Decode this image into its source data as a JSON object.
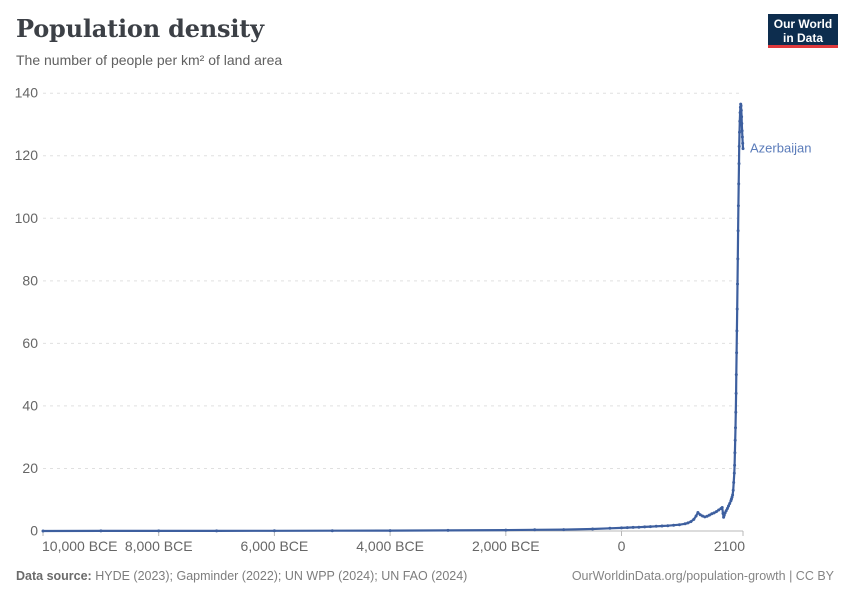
{
  "header": {
    "title": "Population density",
    "subtitle": "The number of people per km² of land area",
    "logo": {
      "line1": "Our World",
      "line2": "in Data",
      "bg_color": "#0d2d4e",
      "accent_color": "#e0393c",
      "text_color": "#ffffff"
    }
  },
  "footer": {
    "source_label": "Data source:",
    "source_text": " HYDE (2023); Gapminder (2022); UN WPP (2024); UN FAO (2024)",
    "credit": "OurWorldinData.org/population-growth | CC BY"
  },
  "chart_data": {
    "type": "line",
    "title": "Population density",
    "subtitle": "The number of people per km² of land area",
    "xlabel": "",
    "ylabel": "",
    "xlim": [
      -10000,
      2100
    ],
    "ylim": [
      0,
      140
    ],
    "grid": "dashed-horizontal",
    "grid_color": "#e0e0e0",
    "axis_color": "#b8b8b8",
    "tick_text_color": "#666666",
    "legend": "inline-end-label",
    "y_ticks": [
      0,
      20,
      40,
      60,
      80,
      100,
      120,
      140
    ],
    "x_ticks": [
      {
        "year": -10000,
        "label": "10,000 BCE"
      },
      {
        "year": -8000,
        "label": "8,000 BCE"
      },
      {
        "year": -6000,
        "label": "6,000 BCE"
      },
      {
        "year": -4000,
        "label": "4,000 BCE"
      },
      {
        "year": -2000,
        "label": "2,000 BCE"
      },
      {
        "year": 0,
        "label": "0"
      },
      {
        "year": 2100,
        "label": "2100"
      }
    ],
    "series": [
      {
        "name": "Azerbaijan",
        "color": "#3d5f9f",
        "label_color": "#5b7cba",
        "points": [
          [
            -10000,
            0.01
          ],
          [
            -9000,
            0.02
          ],
          [
            -8000,
            0.03
          ],
          [
            -7000,
            0.04
          ],
          [
            -6000,
            0.06
          ],
          [
            -5000,
            0.09
          ],
          [
            -4000,
            0.13
          ],
          [
            -3000,
            0.2
          ],
          [
            -2000,
            0.3
          ],
          [
            -1500,
            0.37
          ],
          [
            -1000,
            0.45
          ],
          [
            -500,
            0.65
          ],
          [
            -200,
            0.85
          ],
          [
            0,
            1.0
          ],
          [
            100,
            1.1
          ],
          [
            200,
            1.15
          ],
          [
            300,
            1.2
          ],
          [
            400,
            1.3
          ],
          [
            500,
            1.4
          ],
          [
            600,
            1.5
          ],
          [
            700,
            1.6
          ],
          [
            800,
            1.7
          ],
          [
            900,
            1.85
          ],
          [
            1000,
            2.0
          ],
          [
            1100,
            2.3
          ],
          [
            1150,
            2.6
          ],
          [
            1200,
            3.0
          ],
          [
            1250,
            3.7
          ],
          [
            1290,
            4.8
          ],
          [
            1320,
            5.9
          ],
          [
            1360,
            5.2
          ],
          [
            1400,
            4.8
          ],
          [
            1440,
            4.5
          ],
          [
            1480,
            4.7
          ],
          [
            1520,
            5.1
          ],
          [
            1560,
            5.5
          ],
          [
            1600,
            5.8
          ],
          [
            1640,
            6.2
          ],
          [
            1680,
            6.7
          ],
          [
            1720,
            7.2
          ],
          [
            1740,
            7.5
          ],
          [
            1755,
            5.6
          ],
          [
            1765,
            4.4
          ],
          [
            1775,
            5.0
          ],
          [
            1790,
            5.8
          ],
          [
            1810,
            6.5
          ],
          [
            1830,
            7.2
          ],
          [
            1850,
            8.0
          ],
          [
            1870,
            8.8
          ],
          [
            1890,
            9.7
          ],
          [
            1900,
            10.2
          ],
          [
            1910,
            10.8
          ],
          [
            1920,
            11.5
          ],
          [
            1930,
            13.0
          ],
          [
            1940,
            15.5
          ],
          [
            1950,
            18.5
          ],
          [
            1955,
            21.0
          ],
          [
            1960,
            25.0
          ],
          [
            1965,
            29.0
          ],
          [
            1970,
            33.0
          ],
          [
            1975,
            38.0
          ],
          [
            1980,
            44.0
          ],
          [
            1985,
            50.0
          ],
          [
            1990,
            57.0
          ],
          [
            1995,
            64.0
          ],
          [
            2000,
            71.0
          ],
          [
            2005,
            79.0
          ],
          [
            2010,
            87.0
          ],
          [
            2015,
            96.0
          ],
          [
            2020,
            104.0
          ],
          [
            2025,
            111.0
          ],
          [
            2030,
            117.5
          ],
          [
            2035,
            123.0
          ],
          [
            2040,
            127.5
          ],
          [
            2045,
            131.0
          ],
          [
            2050,
            133.8
          ],
          [
            2055,
            135.5
          ],
          [
            2060,
            136.5
          ],
          [
            2065,
            136.0
          ],
          [
            2070,
            134.5
          ],
          [
            2075,
            132.5
          ],
          [
            2080,
            130.3
          ],
          [
            2085,
            128.0
          ],
          [
            2090,
            126.0
          ],
          [
            2095,
            124.0
          ],
          [
            2100,
            122.3
          ]
        ]
      }
    ]
  }
}
